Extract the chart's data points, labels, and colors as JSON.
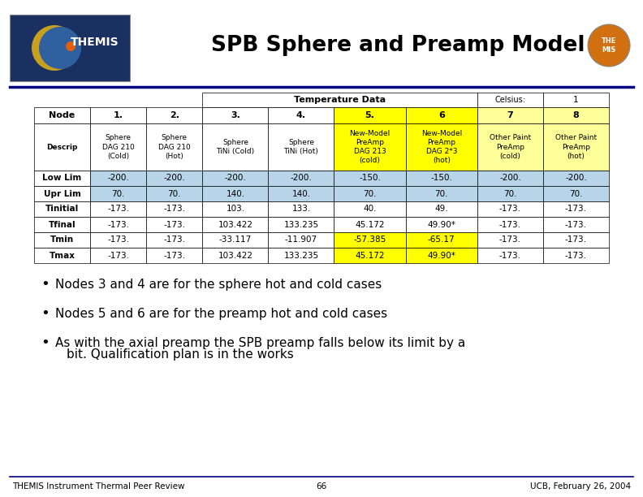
{
  "title": "SPB Sphere and Preamp Model",
  "bg_color": "#ffffff",
  "blue_line_color": "#000080",
  "header_row0_span_text": "Temperature Data",
  "header_row0_celsius": "Celsius:",
  "header_row0_one": "1",
  "header_row1": [
    "Node",
    "1.",
    "2.",
    "3.",
    "4.",
    "5.",
    "6",
    "7",
    "8"
  ],
  "descrip_row": [
    "Descrip",
    "Sphere\nDAG 210\n(Cold)",
    "Sphere\nDAG 210\n(Hot)",
    "Sphere\nTiNi (Cold)",
    "Sphere\nTiNi (Hot)",
    "New-Model\nPreAmp\nDAG 213\n(cold)",
    "New-Model\nPreAmp\nDAG 2*3\n(hot)",
    "Other Paint\nPreAmp\n(cold)",
    "Other Paint\nPreAmp\n(hot)"
  ],
  "data_rows": [
    [
      "Low Lim",
      "-200.",
      "-200.",
      "-200.",
      "-200.",
      "-150.",
      "-150.",
      "-200.",
      "-200."
    ],
    [
      "Upr Lim",
      "70.",
      "70.",
      "140.",
      "140.",
      "70.",
      "70.",
      "70.",
      "70."
    ],
    [
      "Tinitial",
      "-173.",
      "-173.",
      "103.",
      "133.",
      "40.",
      "49.",
      "-173.",
      "-173."
    ],
    [
      "Tfinal",
      "-173.",
      "-173.",
      "103.422",
      "133.235",
      "45.172",
      "49.90*",
      "-173.",
      "-173."
    ],
    [
      "Tmin",
      "-173.",
      "-173.",
      "-33.117",
      "-11.907",
      "-57.385",
      "-65.17",
      "-173.",
      "-173."
    ],
    [
      "Tmax",
      "-173.",
      "-173.",
      "103.422",
      "133.235",
      "45.172",
      "49.90*",
      "-173.",
      "-173."
    ]
  ],
  "col5_color": "#ffff00",
  "col6_color": "#ffff00",
  "col7_color": "#ffff99",
  "col8_color": "#ffff99",
  "lowlim_bg": "#b8d4e8",
  "uprlim_bg": "#b8d4e8",
  "tmin_col5_color": "#ffff00",
  "tmin_col6_color": "#ffff00",
  "tmax_col5_color": "#ffff00",
  "tmax_col6_color": "#ffff00",
  "white": "#ffffff",
  "bullet_points": [
    "Nodes 3 and 4 are for the sphere hot and cold cases",
    "Nodes 5 and 6 are for the preamp hot and cold cases",
    "As with the axial preamp the SPB preamp falls below its limit by a\nbit. Qualification plan is in the works"
  ],
  "footer_left": "THEMIS Instrument Thermal Peer Review",
  "footer_center": "66",
  "footer_right": "UCB, February 26, 2004"
}
